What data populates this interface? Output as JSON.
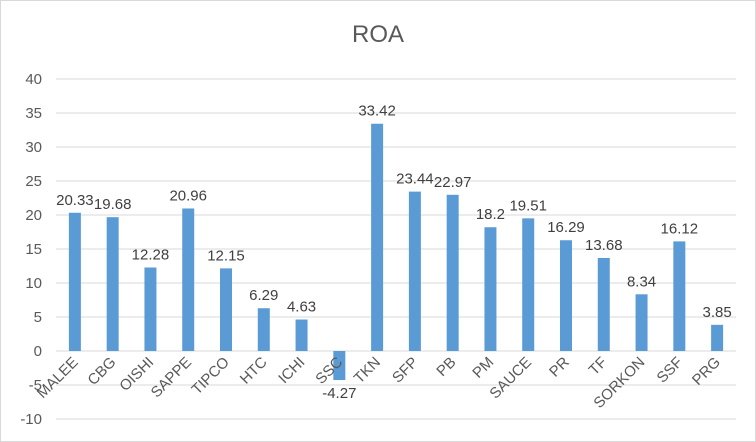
{
  "chart_data": {
    "type": "bar",
    "title": "ROA",
    "categories": [
      "MALEE",
      "CBG",
      "OISHI",
      "SAPPE",
      "TIPCO",
      "HTC",
      "ICHI",
      "SSC",
      "TKN",
      "SFP",
      "PB",
      "PM",
      "SAUCE",
      "PR",
      "TF",
      "SORKON",
      "SSF",
      "PRG"
    ],
    "values": [
      20.33,
      19.68,
      12.28,
      20.96,
      12.15,
      6.29,
      4.63,
      -4.27,
      33.42,
      23.44,
      22.97,
      18.2,
      19.51,
      16.29,
      13.68,
      8.34,
      16.12,
      3.85
    ],
    "data_labels": [
      "20.33",
      "19.68",
      "12.28",
      "20.96",
      "12.15",
      "6.29",
      "4.63",
      "-4.27",
      "33.42",
      "23.44",
      "22.97",
      "18.2",
      "19.51",
      "16.29",
      "13.68",
      "8.34",
      "16.12",
      "3.85"
    ],
    "ylim": [
      -10,
      40
    ],
    "yticks": [
      -10,
      -5,
      0,
      5,
      10,
      15,
      20,
      25,
      30,
      35,
      40
    ],
    "grid": true,
    "legend": "none",
    "colors": {
      "bar": "#5b9bd5",
      "grid": "#d9d9d9",
      "text": "#595959"
    }
  }
}
